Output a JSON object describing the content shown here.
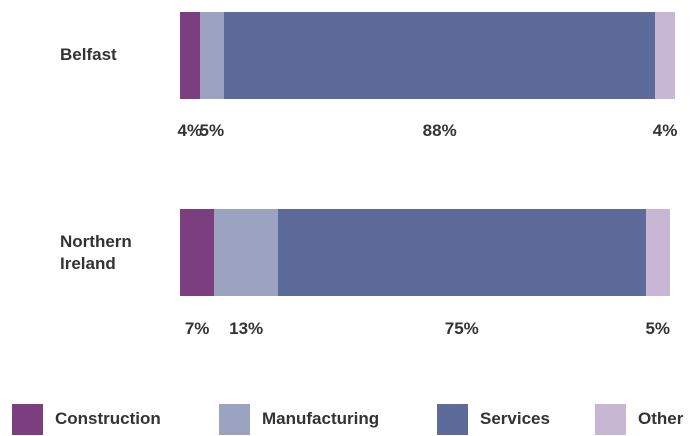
{
  "chart_data": {
    "type": "bar",
    "orientation": "horizontal",
    "stacked": true,
    "normalized": true,
    "categories": [
      "Belfast",
      "Northern\nIreland"
    ],
    "series": [
      {
        "name": "Construction",
        "values": [
          4,
          7
        ],
        "labels": [
          "4%",
          "7%"
        ],
        "color": "#7b3f7f"
      },
      {
        "name": "Manufacturing",
        "values": [
          5,
          13
        ],
        "labels": [
          "5%",
          "13%"
        ],
        "color": "#9ba3c1"
      },
      {
        "name": "Services",
        "values": [
          88,
          75
        ],
        "labels": [
          "88%",
          "75%"
        ],
        "color": "#5c6b9a"
      },
      {
        "name": "Other",
        "values": [
          4,
          5
        ],
        "labels": [
          "4%",
          "5%"
        ],
        "color": "#c8b7d3"
      }
    ],
    "xlim": [
      0,
      101
    ],
    "grid": false,
    "legend_position": "bottom",
    "title": "",
    "xlabel": "",
    "ylabel": ""
  }
}
